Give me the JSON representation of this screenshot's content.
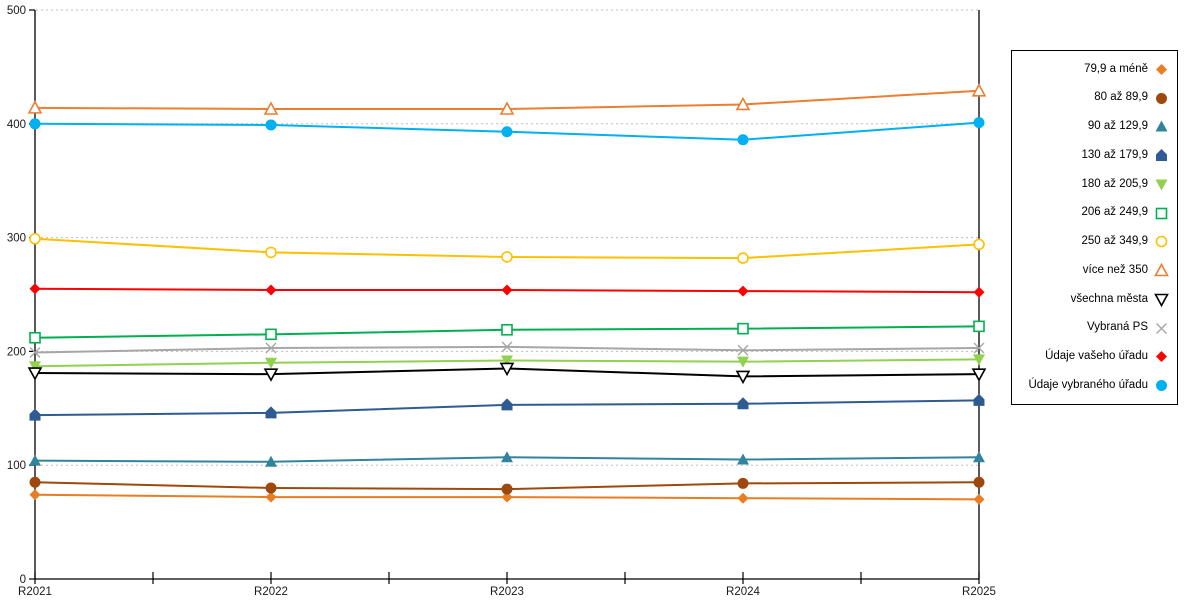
{
  "chart_data": {
    "type": "line",
    "title": "",
    "xlabel": "",
    "ylabel": "",
    "categories": [
      "R2021",
      "R2022",
      "R2023",
      "R2024",
      "R2025"
    ],
    "ylim": [
      0,
      500
    ],
    "yticks": [
      0,
      100,
      200,
      300,
      400,
      500
    ],
    "grid": "horizontal dashed gridlines at each y tick",
    "legend_position": "right, boxed",
    "axis_color": "#000000",
    "gridline_color": "#bdbdbd",
    "series": [
      {
        "name": "79,9 a méně",
        "marker": "diamond-filled",
        "color": "#e87d22",
        "values": [
          74,
          72,
          72,
          71,
          70
        ]
      },
      {
        "name": "80 až 89,9",
        "marker": "circle-filled",
        "color": "#9e480e",
        "values": [
          85,
          80,
          79,
          84,
          85
        ]
      },
      {
        "name": "90 až 129,9",
        "marker": "triangle-up-filled",
        "color": "#31849b",
        "values": [
          104,
          103,
          107,
          105,
          107
        ]
      },
      {
        "name": "130 až 179,9",
        "marker": "pentagon-filled",
        "color": "#2f5b93",
        "values": [
          144,
          146,
          153,
          154,
          157
        ]
      },
      {
        "name": "180 až 205,9",
        "marker": "triangle-down-filled",
        "color": "#92d050",
        "values": [
          187,
          190,
          192,
          191,
          193
        ]
      },
      {
        "name": "206 až 249,9",
        "marker": "square-open",
        "color": "#00b050",
        "values": [
          212,
          215,
          219,
          220,
          222
        ]
      },
      {
        "name": "250 až 349,9",
        "marker": "circle-open",
        "color": "#ffc000",
        "values": [
          299,
          287,
          283,
          282,
          294
        ]
      },
      {
        "name": "více než 350",
        "marker": "triangle-up-open",
        "color": "#ed7d31",
        "values": [
          414,
          413,
          413,
          417,
          429
        ]
      },
      {
        "name": "všechna města",
        "marker": "triangle-down-open",
        "color": "#000000",
        "values": [
          181,
          180,
          185,
          178,
          180
        ]
      },
      {
        "name": "Vybraná PS",
        "marker": "x",
        "color": "#a6a6a6",
        "values": [
          199,
          203,
          204,
          201,
          203
        ]
      },
      {
        "name": "Údaje vašeho úřadu",
        "marker": "diamond-filled",
        "color": "#ff0000",
        "values": [
          255,
          254,
          254,
          253,
          252
        ]
      },
      {
        "name": "Údaje vybraného úřadu",
        "marker": "circle-filled",
        "color": "#00b0f0",
        "values": [
          400,
          399,
          393,
          386,
          401
        ]
      }
    ]
  }
}
